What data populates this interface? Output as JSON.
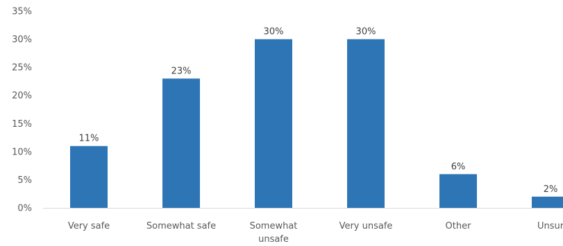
{
  "chart_data": {
    "type": "bar",
    "title": "",
    "xlabel": "",
    "ylabel": "",
    "categories": [
      "Very safe",
      "Somewhat safe",
      "Somewhat unsafe",
      "Very unsafe",
      "Other",
      "Unsure"
    ],
    "category_display": [
      [
        "Very safe"
      ],
      [
        "Somewhat safe"
      ],
      [
        "Somewhat",
        "unsafe"
      ],
      [
        "Very unsafe"
      ],
      [
        "Other"
      ],
      [
        "Unsur"
      ]
    ],
    "values": [
      11,
      23,
      30,
      30,
      6,
      2
    ],
    "data_labels": [
      "11%",
      "23%",
      "30%",
      "30%",
      "6%",
      "2%"
    ],
    "ylim": [
      0,
      35
    ],
    "yticks": [
      0,
      5,
      10,
      15,
      20,
      25,
      30,
      35
    ],
    "ytick_labels": [
      "0%",
      "5%",
      "10%",
      "15%",
      "20%",
      "25%",
      "30%",
      "35%"
    ],
    "grid": false,
    "legend": "none",
    "bar_color": "#2E75B6",
    "axis_color": "#D9D9D9"
  }
}
